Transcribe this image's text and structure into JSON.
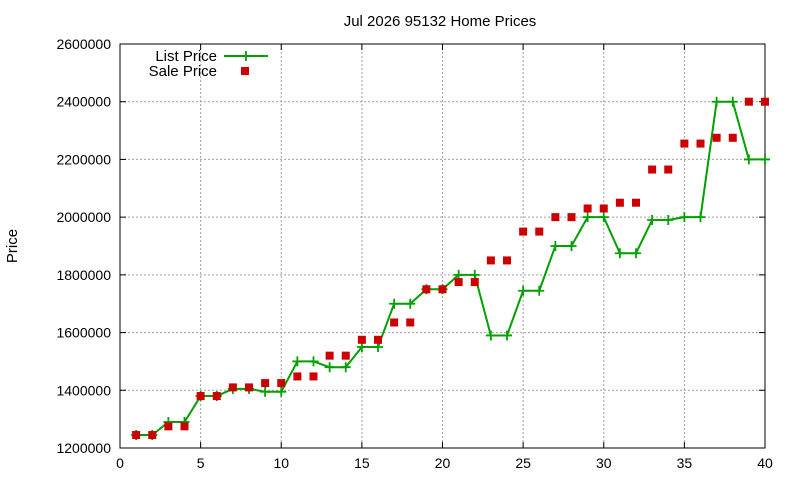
{
  "chart_data": {
    "type": "line",
    "title": "Jul 2026 95132 Home Prices",
    "xlabel": "",
    "ylabel": "Price",
    "xlim": [
      0,
      40
    ],
    "ylim": [
      1200000,
      2600000
    ],
    "xticks": [
      0,
      5,
      10,
      15,
      20,
      25,
      30,
      35,
      40
    ],
    "yticks": [
      1200000,
      1400000,
      1600000,
      1800000,
      2000000,
      2200000,
      2400000,
      2600000
    ],
    "grid": true,
    "legend": "top-left",
    "x": [
      1,
      2,
      3,
      4,
      5,
      6,
      7,
      8,
      9,
      10,
      11,
      12,
      13,
      14,
      15,
      16,
      17,
      18,
      19,
      20,
      21,
      22,
      23,
      24,
      25,
      26,
      27,
      28,
      29,
      30,
      31,
      32,
      33,
      34,
      35,
      36,
      37,
      38,
      39,
      40
    ],
    "series": [
      {
        "name": "List Price",
        "style": "line-points",
        "color": "#00a000",
        "values": [
          1245000,
          1245000,
          1290000,
          1290000,
          1380000,
          1380000,
          1405000,
          1405000,
          1395000,
          1395000,
          1500000,
          1500000,
          1480000,
          1480000,
          1550000,
          1550000,
          1700000,
          1700000,
          1750000,
          1750000,
          1800000,
          1800000,
          1590000,
          1590000,
          1745000,
          1745000,
          1900000,
          1900000,
          2000000,
          2000000,
          1875000,
          1875000,
          1990000,
          1990000,
          2000000,
          2000000,
          2400000,
          2400000,
          2200000,
          2200000
        ]
      },
      {
        "name": "Sale Price",
        "style": "points",
        "color": "#cc0000",
        "values": [
          1245000,
          1245000,
          1275000,
          1275000,
          1380000,
          1380000,
          1410000,
          1410000,
          1425000,
          1425000,
          1448000,
          1448000,
          1520000,
          1520000,
          1575000,
          1575000,
          1635000,
          1635000,
          1750000,
          1750000,
          1775000,
          1775000,
          1850000,
          1850000,
          1950000,
          1950000,
          2000000,
          2000000,
          2030000,
          2030000,
          2050000,
          2050000,
          2165000,
          2165000,
          2255000,
          2255000,
          2275000,
          2275000,
          2400000,
          2400000
        ]
      }
    ]
  }
}
